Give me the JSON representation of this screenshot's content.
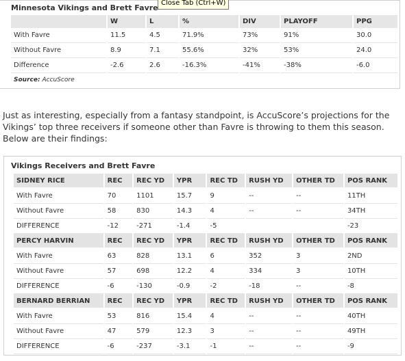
{
  "tooltip": "Close Tab (Ctrl+W)",
  "table1": {
    "title": "Minnesota Vikings and Brett Favre",
    "headers": [
      "",
      "W",
      "L",
      "%",
      "DIV",
      "PLAYOFF",
      "PPG"
    ],
    "rows": [
      [
        "With Favre",
        "11.5",
        "4.5",
        "71.9%",
        "73%",
        "91%",
        "30.0"
      ],
      [
        "Without Favre",
        "8.9",
        "7.1",
        "55.6%",
        "32%",
        "53%",
        "24.0"
      ],
      [
        "Difference",
        "-2.6",
        "2.6",
        "-16.3%",
        "-41%",
        "-38%",
        "-6.0"
      ]
    ],
    "source_label": "Source:",
    "source_value": "AccuScore"
  },
  "paragraph": "Just as interesting, especially from a fantasy standpoint, is AccuScore’s projections for the Vikings’ top three receivers if someone other than Favre is throwing to them this season. Below are their findings:",
  "table2": {
    "title": "Vikings Receivers and Brett Favre",
    "stat_headers": [
      "REC",
      "REC YD",
      "YPR",
      "REC TD",
      "RUSH YD",
      "OTHER TD",
      "POS RANK"
    ],
    "players": [
      {
        "name": "SIDNEY RICE",
        "rows": [
          [
            "With Favre",
            "70",
            "1101",
            "15.7",
            "9",
            "--",
            "--",
            "11TH"
          ],
          [
            "Without Favre",
            "58",
            "830",
            "14.3",
            "4",
            "--",
            "--",
            "34TH"
          ],
          [
            "DIFFERENCE",
            "-12",
            "-271",
            "-1.4",
            "-5",
            "",
            "",
            "-23"
          ]
        ]
      },
      {
        "name": "PERCY HARVIN",
        "rows": [
          [
            "With Favre",
            "63",
            "828",
            "13.1",
            "6",
            "352",
            "3",
            "2ND"
          ],
          [
            "Without Favre",
            "57",
            "698",
            "12.2",
            "4",
            "334",
            "3",
            "10TH"
          ],
          [
            "DIFFERENCE",
            "-6",
            "-130",
            "-0.9",
            "-2",
            "-18",
            "--",
            "-8"
          ]
        ]
      },
      {
        "name": "BERNARD BERRIAN",
        "rows": [
          [
            "With Favre",
            "53",
            "816",
            "15.4",
            "4",
            "--",
            "--",
            "40TH"
          ],
          [
            "Without Favre",
            "47",
            "579",
            "12.3",
            "3",
            "--",
            "--",
            "49TH"
          ],
          [
            "DIFFERENCE",
            "-6",
            "-237",
            "-3.1",
            "-1",
            "--",
            "--",
            "-9"
          ]
        ]
      }
    ]
  }
}
